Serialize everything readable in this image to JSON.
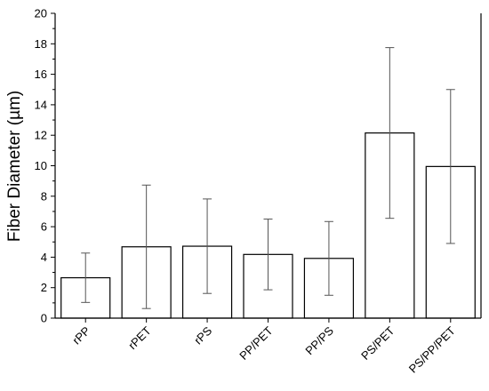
{
  "chart_data": {
    "type": "bar",
    "title": "",
    "xlabel": "",
    "ylabel": "Fiber Diameter (µm)",
    "ylim": [
      0,
      20
    ],
    "yticks": [
      0,
      2,
      4,
      6,
      8,
      10,
      12,
      14,
      16,
      18,
      20
    ],
    "grid": false,
    "categories": [
      "rPP",
      "rPET",
      "rPS",
      "PP/PET",
      "PP/PS",
      "PS/PET",
      "PS/PP/PET"
    ],
    "values": [
      2.65,
      4.68,
      4.72,
      4.18,
      3.92,
      12.15,
      9.95
    ],
    "errors": [
      1.62,
      4.05,
      3.1,
      2.32,
      2.42,
      5.6,
      5.05
    ],
    "colors": {
      "bar_fill": "#ffffff",
      "bar_stroke": "#000000",
      "axis": "#000000"
    }
  }
}
